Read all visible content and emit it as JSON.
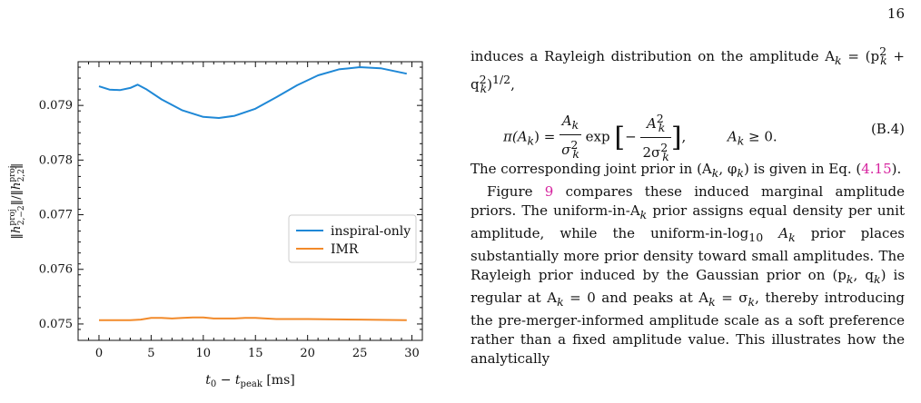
{
  "page_number": "16",
  "figure": {
    "ylabel": "‖h^proj_{2,−2}‖/‖h^proj_{2,2}‖",
    "xlabel": "t0 − tpeak [ms]",
    "legend": [
      "inspiral-only",
      "IMR"
    ],
    "colors": {
      "inspiral": "#1f88d6",
      "imr": "#f28a2a"
    }
  },
  "chart_data": {
    "type": "line",
    "xlabel": "t0 − tpeak [ms]",
    "ylabel": "‖h^proj_{2,−2}‖/‖h^proj_{2,2}‖",
    "xlim": [
      -2,
      31
    ],
    "ylim": [
      0.0747,
      0.0798
    ],
    "x_ticks": [
      0,
      5,
      10,
      15,
      20,
      25,
      30
    ],
    "y_ticks": [
      0.075,
      0.076,
      0.077,
      0.078,
      0.079
    ],
    "x_tick_labels": [
      "0",
      "5",
      "10",
      "15",
      "20",
      "25",
      "30"
    ],
    "y_tick_labels": [
      "0.075",
      "0.076",
      "0.077",
      "0.078",
      "0.079"
    ],
    "legend_position": "right",
    "series": [
      {
        "name": "inspiral-only",
        "color": "#1f88d6",
        "x": [
          0,
          1,
          2,
          3,
          3.7,
          4.5,
          6,
          8,
          10,
          11.5,
          13,
          15,
          17,
          19,
          21,
          23,
          25,
          27,
          29.5
        ],
        "y": [
          0.07935,
          0.07929,
          0.07928,
          0.07932,
          0.07938,
          0.0793,
          0.07911,
          0.07891,
          0.07879,
          0.07877,
          0.07881,
          0.07894,
          0.07915,
          0.07937,
          0.07955,
          0.07966,
          0.0797,
          0.07968,
          0.07958
        ]
      },
      {
        "name": "IMR",
        "color": "#f28a2a",
        "x": [
          0,
          1,
          2,
          3,
          4,
          5,
          6,
          7,
          8,
          9,
          10,
          11,
          12,
          13,
          14,
          15,
          17,
          20,
          25,
          29.5
        ],
        "y": [
          0.07507,
          0.07507,
          0.07507,
          0.07507,
          0.07508,
          0.07511,
          0.07511,
          0.0751,
          0.07511,
          0.07512,
          0.07512,
          0.0751,
          0.0751,
          0.0751,
          0.07511,
          0.07511,
          0.07509,
          0.07509,
          0.07508,
          0.07507
        ]
      }
    ]
  },
  "text": {
    "p1a": "induces a Rayleigh distribution on the amplitude A",
    "p1b": "k",
    "p1c": " =",
    "p1d": "(p",
    "p1e": "2",
    "p1f": "k",
    "p1g": " + q",
    "p1h": "2",
    "p1i": "k",
    "p1j": ")",
    "p1k": "1/2",
    "p1l": ",",
    "eq_lhs": "π(A",
    "eq_lhs2": "k",
    "eq_lhs3": ") =",
    "eq_f1_top": "A",
    "eq_f1_top_sub": "k",
    "eq_f1_bot": "σ",
    "eq_f1_bot_sup": "2",
    "eq_f1_bot_sub": "k",
    "eq_exp": "exp",
    "eq_bracket_l": "[",
    "eq_minus": "−",
    "eq_f2_top": "A",
    "eq_f2_top_sup": "2",
    "eq_f2_top_sub": "k",
    "eq_f2_bot": "2σ",
    "eq_f2_bot_sup": "2",
    "eq_f2_bot_sub": "k",
    "eq_bracket_r": "]",
    "eq_cond": "A",
    "eq_cond_sub": "k",
    "eq_cond2": " ≥ 0.",
    "eq_number": "(B.4)",
    "p2a": "The corresponding joint prior in (A",
    "p2b": "k",
    "p2c": ", φ",
    "p2d": "k",
    "p2e": ") is given in Eq. (",
    "p2ref": "4.15",
    "p2f": ").",
    "p3a": "Figure ",
    "p3ref": "9",
    "p3b": " compares these induced marginal amplitude priors. The uniform-in-A",
    "p3c": "k",
    "p3d": " prior assigns equal density per unit amplitude, while the uniform-in-log",
    "p3e": "10",
    "p3f": " A",
    "p3g": "k",
    "p3h": " prior places substantially more prior density toward small amplitudes. The Rayleigh prior induced by the Gaussian prior on (p",
    "p3i": "k",
    "p3j": ", q",
    "p3k": "k",
    "p3l": ") is regular at A",
    "p3m": "k",
    "p3n": " = 0 and peaks at A",
    "p3o": "k",
    "p3p": " = σ",
    "p3q": "k",
    "p3r": ", thereby introducing the pre-merger-informed amplitude scale as a soft preference rather than a fixed amplitude value. This illustrates how the analytically"
  }
}
